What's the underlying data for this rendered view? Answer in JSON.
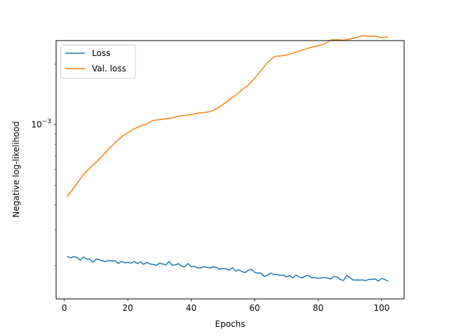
{
  "chart_data": {
    "type": "line",
    "title": "",
    "xlabel": "Epochs",
    "ylabel": "Negative log-likelihood",
    "xlim": [
      -2.6,
      107.1
    ],
    "ylim": [
      0.000137,
      0.00261
    ],
    "yscale": "log",
    "grid": false,
    "legend_position": "top-left",
    "x_ticks": [
      0,
      20,
      40,
      60,
      80,
      100
    ],
    "x_tick_labels": [
      "0",
      "20",
      "40",
      "60",
      "80",
      "100"
    ],
    "y_ticks": [
      0.001
    ],
    "y_tick_labels": [
      "10−3"
    ],
    "series": [
      {
        "name": "Loss",
        "color": "#1f77b4",
        "x": [
          1,
          2,
          3,
          4,
          5,
          6,
          7,
          8,
          9,
          10,
          11,
          12,
          13,
          14,
          15,
          16,
          17,
          18,
          19,
          20,
          21,
          22,
          23,
          24,
          25,
          26,
          27,
          28,
          29,
          30,
          31,
          32,
          33,
          34,
          35,
          36,
          37,
          38,
          39,
          40,
          41,
          42,
          43,
          44,
          45,
          46,
          47,
          48,
          49,
          50,
          51,
          52,
          53,
          54,
          55,
          56,
          57,
          58,
          59,
          60,
          61,
          62,
          63,
          64,
          65,
          66,
          67,
          68,
          69,
          70,
          71,
          72,
          73,
          74,
          75,
          76,
          77,
          78,
          79,
          80,
          81,
          82,
          83,
          84,
          85,
          86,
          87,
          88,
          89,
          90,
          91,
          92,
          93,
          94,
          95,
          96,
          97,
          98,
          99,
          100,
          101,
          102
        ],
        "y": [
          0.000222,
          0.000219,
          0.000222,
          0.00022,
          0.000213,
          0.000221,
          0.000216,
          0.000216,
          0.000208,
          0.000216,
          0.000215,
          0.000211,
          0.00021,
          0.000212,
          0.000211,
          0.000212,
          0.000205,
          0.00021,
          0.000207,
          0.000208,
          0.000206,
          0.00021,
          0.000205,
          0.000209,
          0.000203,
          0.000208,
          0.000204,
          0.000203,
          0.000201,
          0.000206,
          0.000204,
          0.000202,
          0.00021,
          0.000201,
          0.000202,
          0.000205,
          0.000199,
          0.000198,
          0.000205,
          0.000198,
          0.000199,
          0.000195,
          0.000195,
          0.000198,
          0.000196,
          0.000195,
          0.000198,
          0.000196,
          0.000192,
          0.000194,
          0.000193,
          0.00019,
          0.000196,
          0.000188,
          0.000191,
          0.000187,
          0.000185,
          0.00019,
          0.000192,
          0.000185,
          0.000184,
          0.000184,
          0.000177,
          0.000179,
          0.000184,
          0.000181,
          0.000181,
          0.000179,
          0.00018,
          0.000176,
          0.000179,
          0.000174,
          0.00018,
          0.000176,
          0.000174,
          0.000178,
          0.000179,
          0.000174,
          0.000175,
          0.000173,
          0.000174,
          0.000175,
          0.000174,
          0.000172,
          0.000177,
          0.000176,
          0.000171,
          0.000169,
          0.000179,
          0.000175,
          0.00017,
          0.00017,
          0.00017,
          0.00017,
          0.000169,
          0.000171,
          0.000171,
          0.000172,
          0.000168,
          0.000173,
          0.000171,
          0.000168
        ]
      },
      {
        "name": "Val. loss",
        "color": "#ff7f0e",
        "x": [
          1,
          2,
          4,
          6,
          8,
          10,
          12,
          14,
          16,
          18,
          20,
          22,
          24,
          26,
          28,
          30,
          32,
          34,
          36,
          38,
          40,
          42,
          44,
          46,
          48,
          50,
          52,
          54,
          56,
          58,
          60,
          62,
          64,
          66,
          67,
          68,
          70,
          72,
          74,
          76,
          78,
          80,
          82,
          84,
          86,
          88,
          90,
          92,
          94,
          96,
          98,
          100,
          102
        ],
        "y": [
          0.000443,
          0.000465,
          0.000511,
          0.000566,
          0.00061,
          0.000652,
          0.000701,
          0.000758,
          0.000815,
          0.00087,
          0.000912,
          0.000952,
          0.000985,
          0.00101,
          0.00105,
          0.00106,
          0.00107,
          0.00108,
          0.0011,
          0.00111,
          0.00112,
          0.00114,
          0.00115,
          0.00116,
          0.0012,
          0.00126,
          0.00133,
          0.0014,
          0.00149,
          0.00157,
          0.0017,
          0.00186,
          0.00203,
          0.00216,
          0.00219,
          0.00219,
          0.00221,
          0.00226,
          0.00231,
          0.00237,
          0.00242,
          0.00246,
          0.00251,
          0.00263,
          0.00264,
          0.00262,
          0.00266,
          0.0027,
          0.00276,
          0.00274,
          0.00275,
          0.0027,
          0.00272
        ]
      }
    ]
  }
}
